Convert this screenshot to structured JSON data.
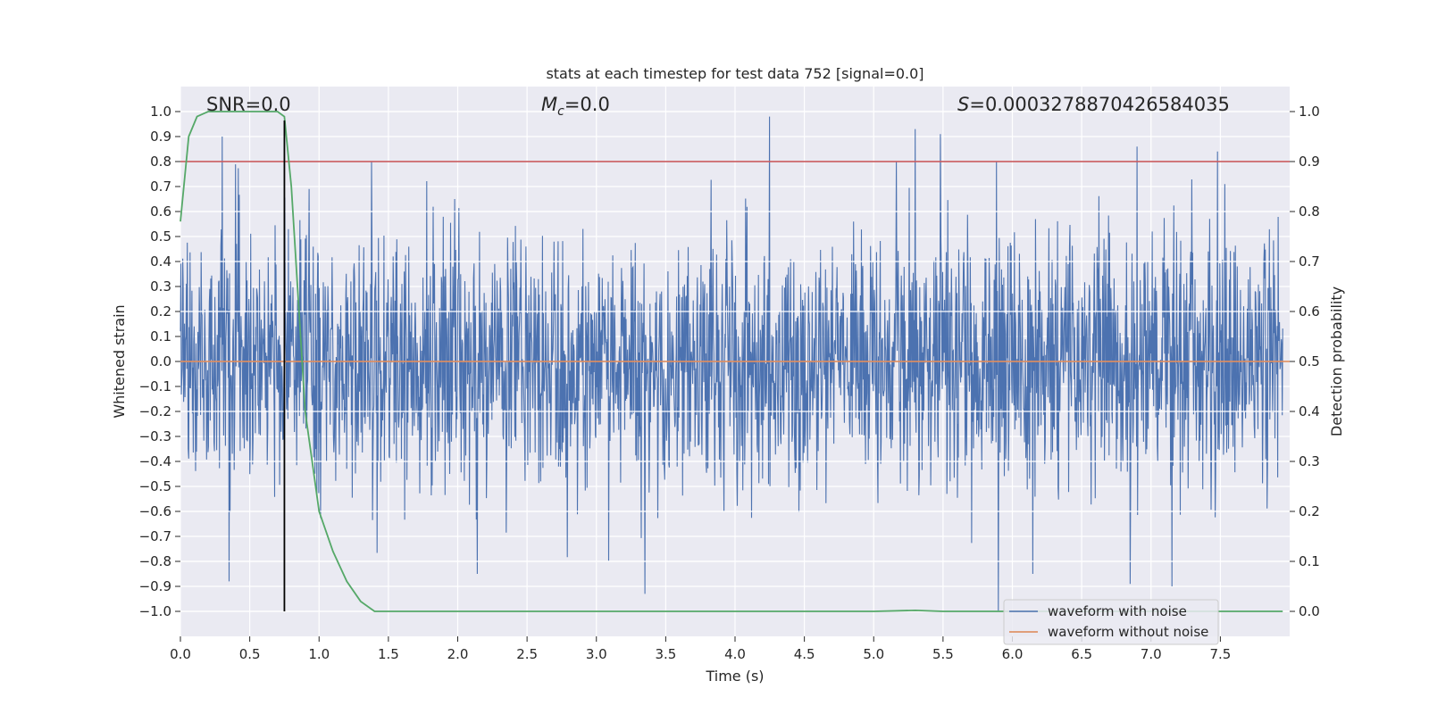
{
  "chart_data": {
    "type": "line",
    "title": "stats at each timestep for test data 752 [signal=0.0]",
    "xlabel": "Time (s)",
    "ylabel_left": "Whitened strain",
    "ylabel_right": "Detection probability",
    "xlim": [
      0.0,
      8.0
    ],
    "ylim_left": [
      -1.1,
      1.1
    ],
    "ylim_right": [
      -0.05,
      1.05
    ],
    "x_ticks": [
      "0.0",
      "0.5",
      "1.0",
      "1.5",
      "2.0",
      "2.5",
      "3.0",
      "3.5",
      "4.0",
      "4.5",
      "5.0",
      "5.5",
      "6.0",
      "6.5",
      "7.0",
      "7.5"
    ],
    "y_ticks_left": [
      "1.0",
      "0.9",
      "0.8",
      "0.7",
      "0.6",
      "0.5",
      "0.4",
      "0.3",
      "0.2",
      "0.1",
      "0.0",
      "−0.1",
      "−0.2",
      "−0.3",
      "−0.4",
      "−0.5",
      "−0.6",
      "−0.7",
      "−0.8",
      "−0.9",
      "−1.0"
    ],
    "y_ticks_right": [
      "1.0",
      "0.9",
      "0.8",
      "0.7",
      "0.6",
      "0.5",
      "0.4",
      "0.3",
      "0.2",
      "0.1",
      "0.0"
    ],
    "annotations": {
      "snr": "SNR=0.0",
      "mc": "=0.0",
      "mc_symbol": "M",
      "mc_subscript": "c",
      "s_symbol": "S",
      "s_value": "=0.0003278870426584035"
    },
    "threshold": 0.9,
    "marker_time": 0.75,
    "detection_probability": {
      "x": [
        0.0,
        0.06,
        0.12,
        0.2,
        0.3,
        0.4,
        0.5,
        0.6,
        0.7,
        0.75,
        0.8,
        0.9,
        1.0,
        1.1,
        1.2,
        1.3,
        1.4,
        1.5,
        2.0,
        3.0,
        4.0,
        5.0,
        5.3,
        5.5,
        6.0,
        7.0,
        7.95
      ],
      "y": [
        0.78,
        0.95,
        0.99,
        1.0,
        1.0,
        1.0,
        1.0,
        1.0,
        1.0,
        0.99,
        0.85,
        0.4,
        0.2,
        0.12,
        0.06,
        0.02,
        0.0,
        0.0,
        0.0,
        0.0,
        0.0,
        0.0,
        0.002,
        0.0,
        0.0,
        0.0,
        0.0
      ]
    },
    "waveform_with_noise": {
      "noise_amplitude": 0.25,
      "spikes": [
        {
          "x": 0.3,
          "y": 0.9
        },
        {
          "x": 0.35,
          "y": -0.88
        },
        {
          "x": 1.98,
          "y": 0.65
        },
        {
          "x": 3.35,
          "y": -0.93
        },
        {
          "x": 4.25,
          "y": 0.98
        },
        {
          "x": 5.3,
          "y": 0.93
        },
        {
          "x": 5.48,
          "y": 0.91
        },
        {
          "x": 5.9,
          "y": -1.0
        },
        {
          "x": 6.9,
          "y": 0.86
        },
        {
          "x": 6.85,
          "y": -0.89
        },
        {
          "x": 7.15,
          "y": -0.9
        },
        {
          "x": 7.48,
          "y": 0.84
        }
      ]
    },
    "waveform_without_noise": {
      "value": 0.0
    },
    "series": [
      {
        "name": "waveform with noise",
        "color": "#4c72b0"
      },
      {
        "name": "waveform without noise",
        "color": "#dd8452"
      },
      {
        "name": "detection probability",
        "color": "#55a868"
      },
      {
        "name": "threshold",
        "color": "#c44e52"
      }
    ],
    "legend": {
      "placement": "lower-right",
      "entries": [
        "waveform with noise",
        "waveform without noise"
      ]
    },
    "grid": true,
    "background": "#eaeaf2"
  }
}
